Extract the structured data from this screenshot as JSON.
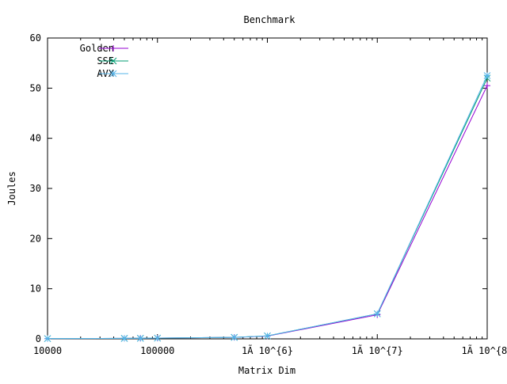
{
  "chart_data": {
    "type": "line",
    "title": "Benchmark",
    "xlabel": "Matrix Dim",
    "ylabel": "Joules",
    "xscale": "log",
    "xlim": [
      10000,
      100000000
    ],
    "ylim": [
      0,
      60
    ],
    "grid": false,
    "legend_position": "top-left",
    "x_tick_labels": [
      "10000",
      "100000",
      "1Ã 10^{6}",
      "1Ã 10^{7}",
      "1Ã 10^{8}"
    ],
    "x_tick_values": [
      10000,
      100000,
      1000000,
      10000000,
      100000000
    ],
    "y_ticks": [
      0,
      10,
      20,
      30,
      40,
      50,
      60
    ],
    "x": [
      10000,
      50000,
      70000,
      100000,
      500000,
      1000000,
      10000000,
      100000000
    ],
    "series": [
      {
        "name": "Golden",
        "marker": "plus",
        "color": "#9400d3",
        "values": [
          0.05,
          0.1,
          0.12,
          0.15,
          0.3,
          0.55,
          4.8,
          50.5
        ]
      },
      {
        "name": "SSE",
        "marker": "cross",
        "color": "#009e73",
        "values": [
          0.05,
          0.1,
          0.12,
          0.15,
          0.3,
          0.6,
          5.0,
          52.0
        ]
      },
      {
        "name": "AVX",
        "marker": "star",
        "color": "#56b4e9",
        "values": [
          0.05,
          0.1,
          0.12,
          0.15,
          0.3,
          0.6,
          5.0,
          52.5
        ]
      }
    ]
  }
}
